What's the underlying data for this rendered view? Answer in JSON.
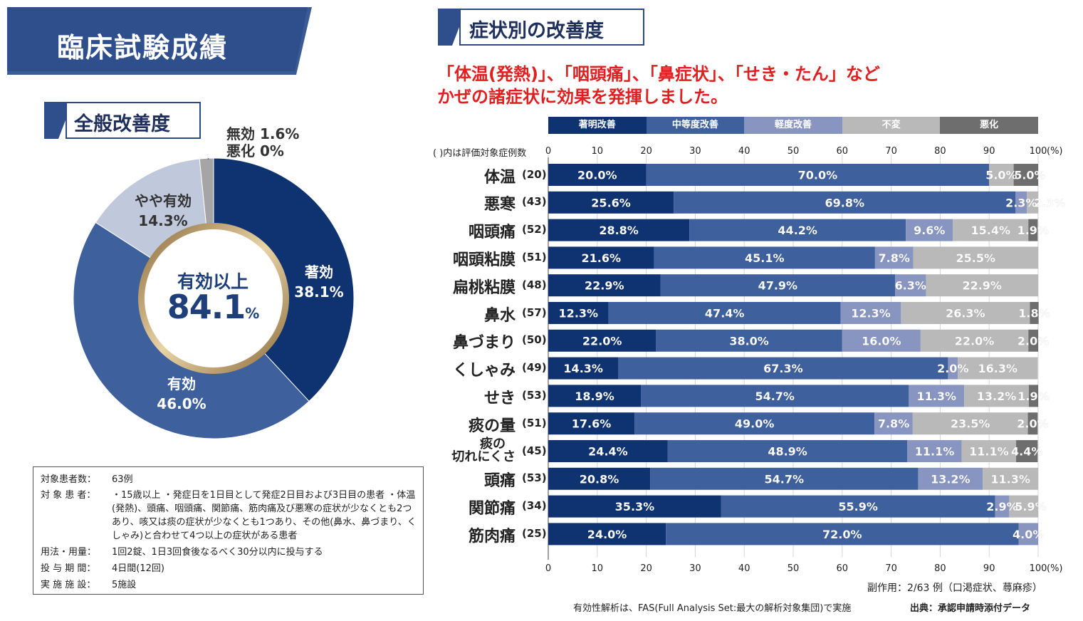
{
  "title": "臨床試験成績",
  "left_section": {
    "label": "全般改善度",
    "center_line1": "有効以上",
    "center_value": "84.1",
    "center_unit": "%",
    "slices": [
      {
        "name": "著効",
        "value": 38.1,
        "value_label": "38.1%",
        "color": "#0f3370"
      },
      {
        "name": "有効",
        "value": 46.0,
        "value_label": "46.0%",
        "color": "#3e609c"
      },
      {
        "name": "やや有効",
        "value": 14.3,
        "value_label": "14.3%",
        "color": "#c0c8db"
      },
      {
        "name": "無効",
        "value": 1.6,
        "value_label": "1.6%",
        "color": "#a5a5a5"
      },
      {
        "name": "悪化",
        "value": 0.0,
        "value_label": "0%",
        "color": "#6e6e6e"
      }
    ],
    "callout_line1": "無効 1.6%",
    "callout_line2": "悪化 0%"
  },
  "info": {
    "rows": [
      {
        "key": "対象患者数：",
        "value": "63例"
      },
      {
        "key": "対 象 患 者：",
        "value": "・15歳以上 ・発症日を1日目として発症2日目および3日目の患者 ・体温(発熱)、頭痛、咽頭痛、関節痛、筋肉痛及び悪寒の症状が少なくとも2つあり、咳又は痰の症状が少なくとも1つあり、その他(鼻水、鼻づまり、くしゃみ)と合わせて4つ以上の症状がある患者"
      },
      {
        "key": "用法・用量：",
        "value": "1回2錠、1日3回食後なるべく30分以内に投与する"
      },
      {
        "key": "投 与 期 間：",
        "value": "4日間(12回)"
      },
      {
        "key": "実 施 施 設：",
        "value": "5施設"
      }
    ]
  },
  "right_section": {
    "label": "症状別の改善度",
    "headline1": "「体温(発熱)」、「咽頭痛」、「鼻症状」、「せき・たん」など",
    "headline2": "かぜの諸症状に効果を発揮しました。",
    "count_note": "( )内は評価対象症例数",
    "side_effect_note": "副作用：2/63 例（口渇症状、蕁麻疹）",
    "fas_note": "有効性解析は、FAS(Full Analysis Set:最大の解析対象集団)で実施",
    "source_note": "出典：承認申請時添付データ"
  },
  "chart_data": {
    "type": "stacked-bar-horizontal",
    "xlim": [
      0,
      100
    ],
    "x_ticks": [
      "0",
      "10",
      "20",
      "30",
      "40",
      "50",
      "60",
      "70",
      "80",
      "90",
      "100"
    ],
    "x_unit": "(%)",
    "legend": [
      {
        "name": "著明改善",
        "color": "#0f3370"
      },
      {
        "name": "中等度改善",
        "color": "#3e609c"
      },
      {
        "name": "軽度改善",
        "color": "#8795c0"
      },
      {
        "name": "不変",
        "color": "#b9b9b9"
      },
      {
        "name": "悪化",
        "color": "#6e6e6e"
      }
    ],
    "categories": [
      {
        "name": "体温",
        "n": "(20)",
        "values": [
          20.0,
          70.0,
          0,
          5.0,
          5.0
        ],
        "labels": [
          "20.0%",
          "70.0%",
          "",
          "5.0%",
          "5.0%"
        ]
      },
      {
        "name": "悪寒",
        "n": "(43)",
        "values": [
          25.6,
          69.8,
          2.3,
          2.3,
          0
        ],
        "labels": [
          "25.6%",
          "69.8%",
          "2.3%",
          "2.3%",
          ""
        ]
      },
      {
        "name": "咽頭痛",
        "n": "(52)",
        "values": [
          28.8,
          44.2,
          9.6,
          15.4,
          1.9
        ],
        "labels": [
          "28.8%",
          "44.2%",
          "9.6%",
          "15.4%",
          "1.9%"
        ]
      },
      {
        "name": "咽頭粘膜",
        "n": "(51)",
        "values": [
          21.6,
          45.1,
          7.8,
          25.5,
          0
        ],
        "labels": [
          "21.6%",
          "45.1%",
          "7.8%",
          "25.5%",
          ""
        ]
      },
      {
        "name": "扁桃粘膜",
        "n": "(48)",
        "values": [
          22.9,
          47.9,
          6.3,
          22.9,
          0
        ],
        "labels": [
          "22.9%",
          "47.9%",
          "6.3%",
          "22.9%",
          ""
        ]
      },
      {
        "name": "鼻水",
        "n": "(57)",
        "values": [
          12.3,
          47.4,
          12.3,
          26.3,
          1.8
        ],
        "labels": [
          "12.3%",
          "47.4%",
          "12.3%",
          "26.3%",
          "1.8%"
        ]
      },
      {
        "name": "鼻づまり",
        "n": "(50)",
        "values": [
          22.0,
          38.0,
          16.0,
          22.0,
          2.0
        ],
        "labels": [
          "22.0%",
          "38.0%",
          "16.0%",
          "22.0%",
          "2.0%"
        ]
      },
      {
        "name": "くしゃみ",
        "n": "(49)",
        "values": [
          14.3,
          67.3,
          2.0,
          16.3,
          0
        ],
        "labels": [
          "14.3%",
          "67.3%",
          "2.0%",
          "16.3%",
          ""
        ]
      },
      {
        "name": "せき",
        "n": "(53)",
        "values": [
          18.9,
          54.7,
          11.3,
          13.2,
          1.9
        ],
        "labels": [
          "18.9%",
          "54.7%",
          "11.3%",
          "13.2%",
          "1.9%"
        ]
      },
      {
        "name": "痰の量",
        "n": "(51)",
        "values": [
          17.6,
          49.0,
          7.8,
          23.5,
          2.0
        ],
        "labels": [
          "17.6%",
          "49.0%",
          "7.8%",
          "23.5%",
          "2.0%"
        ]
      },
      {
        "name": "痰の切れにくさ",
        "n": "(45)",
        "values": [
          24.4,
          48.9,
          11.1,
          11.1,
          4.4
        ],
        "labels": [
          "24.4%",
          "48.9%",
          "11.1%",
          "11.1%",
          "4.4%"
        ]
      },
      {
        "name": "頭痛",
        "n": "(53)",
        "values": [
          20.8,
          54.7,
          13.2,
          11.3,
          0
        ],
        "labels": [
          "20.8%",
          "54.7%",
          "13.2%",
          "11.3%",
          ""
        ]
      },
      {
        "name": "関節痛",
        "n": "(34)",
        "values": [
          35.3,
          55.9,
          2.9,
          5.9,
          0
        ],
        "labels": [
          "35.3%",
          "55.9%",
          "2.9%",
          "5.9%",
          ""
        ]
      },
      {
        "name": "筋肉痛",
        "n": "(25)",
        "values": [
          24.0,
          72.0,
          4.0,
          0,
          0
        ],
        "labels": [
          "24.0%",
          "72.0%",
          "4.0%",
          "",
          ""
        ]
      }
    ]
  }
}
